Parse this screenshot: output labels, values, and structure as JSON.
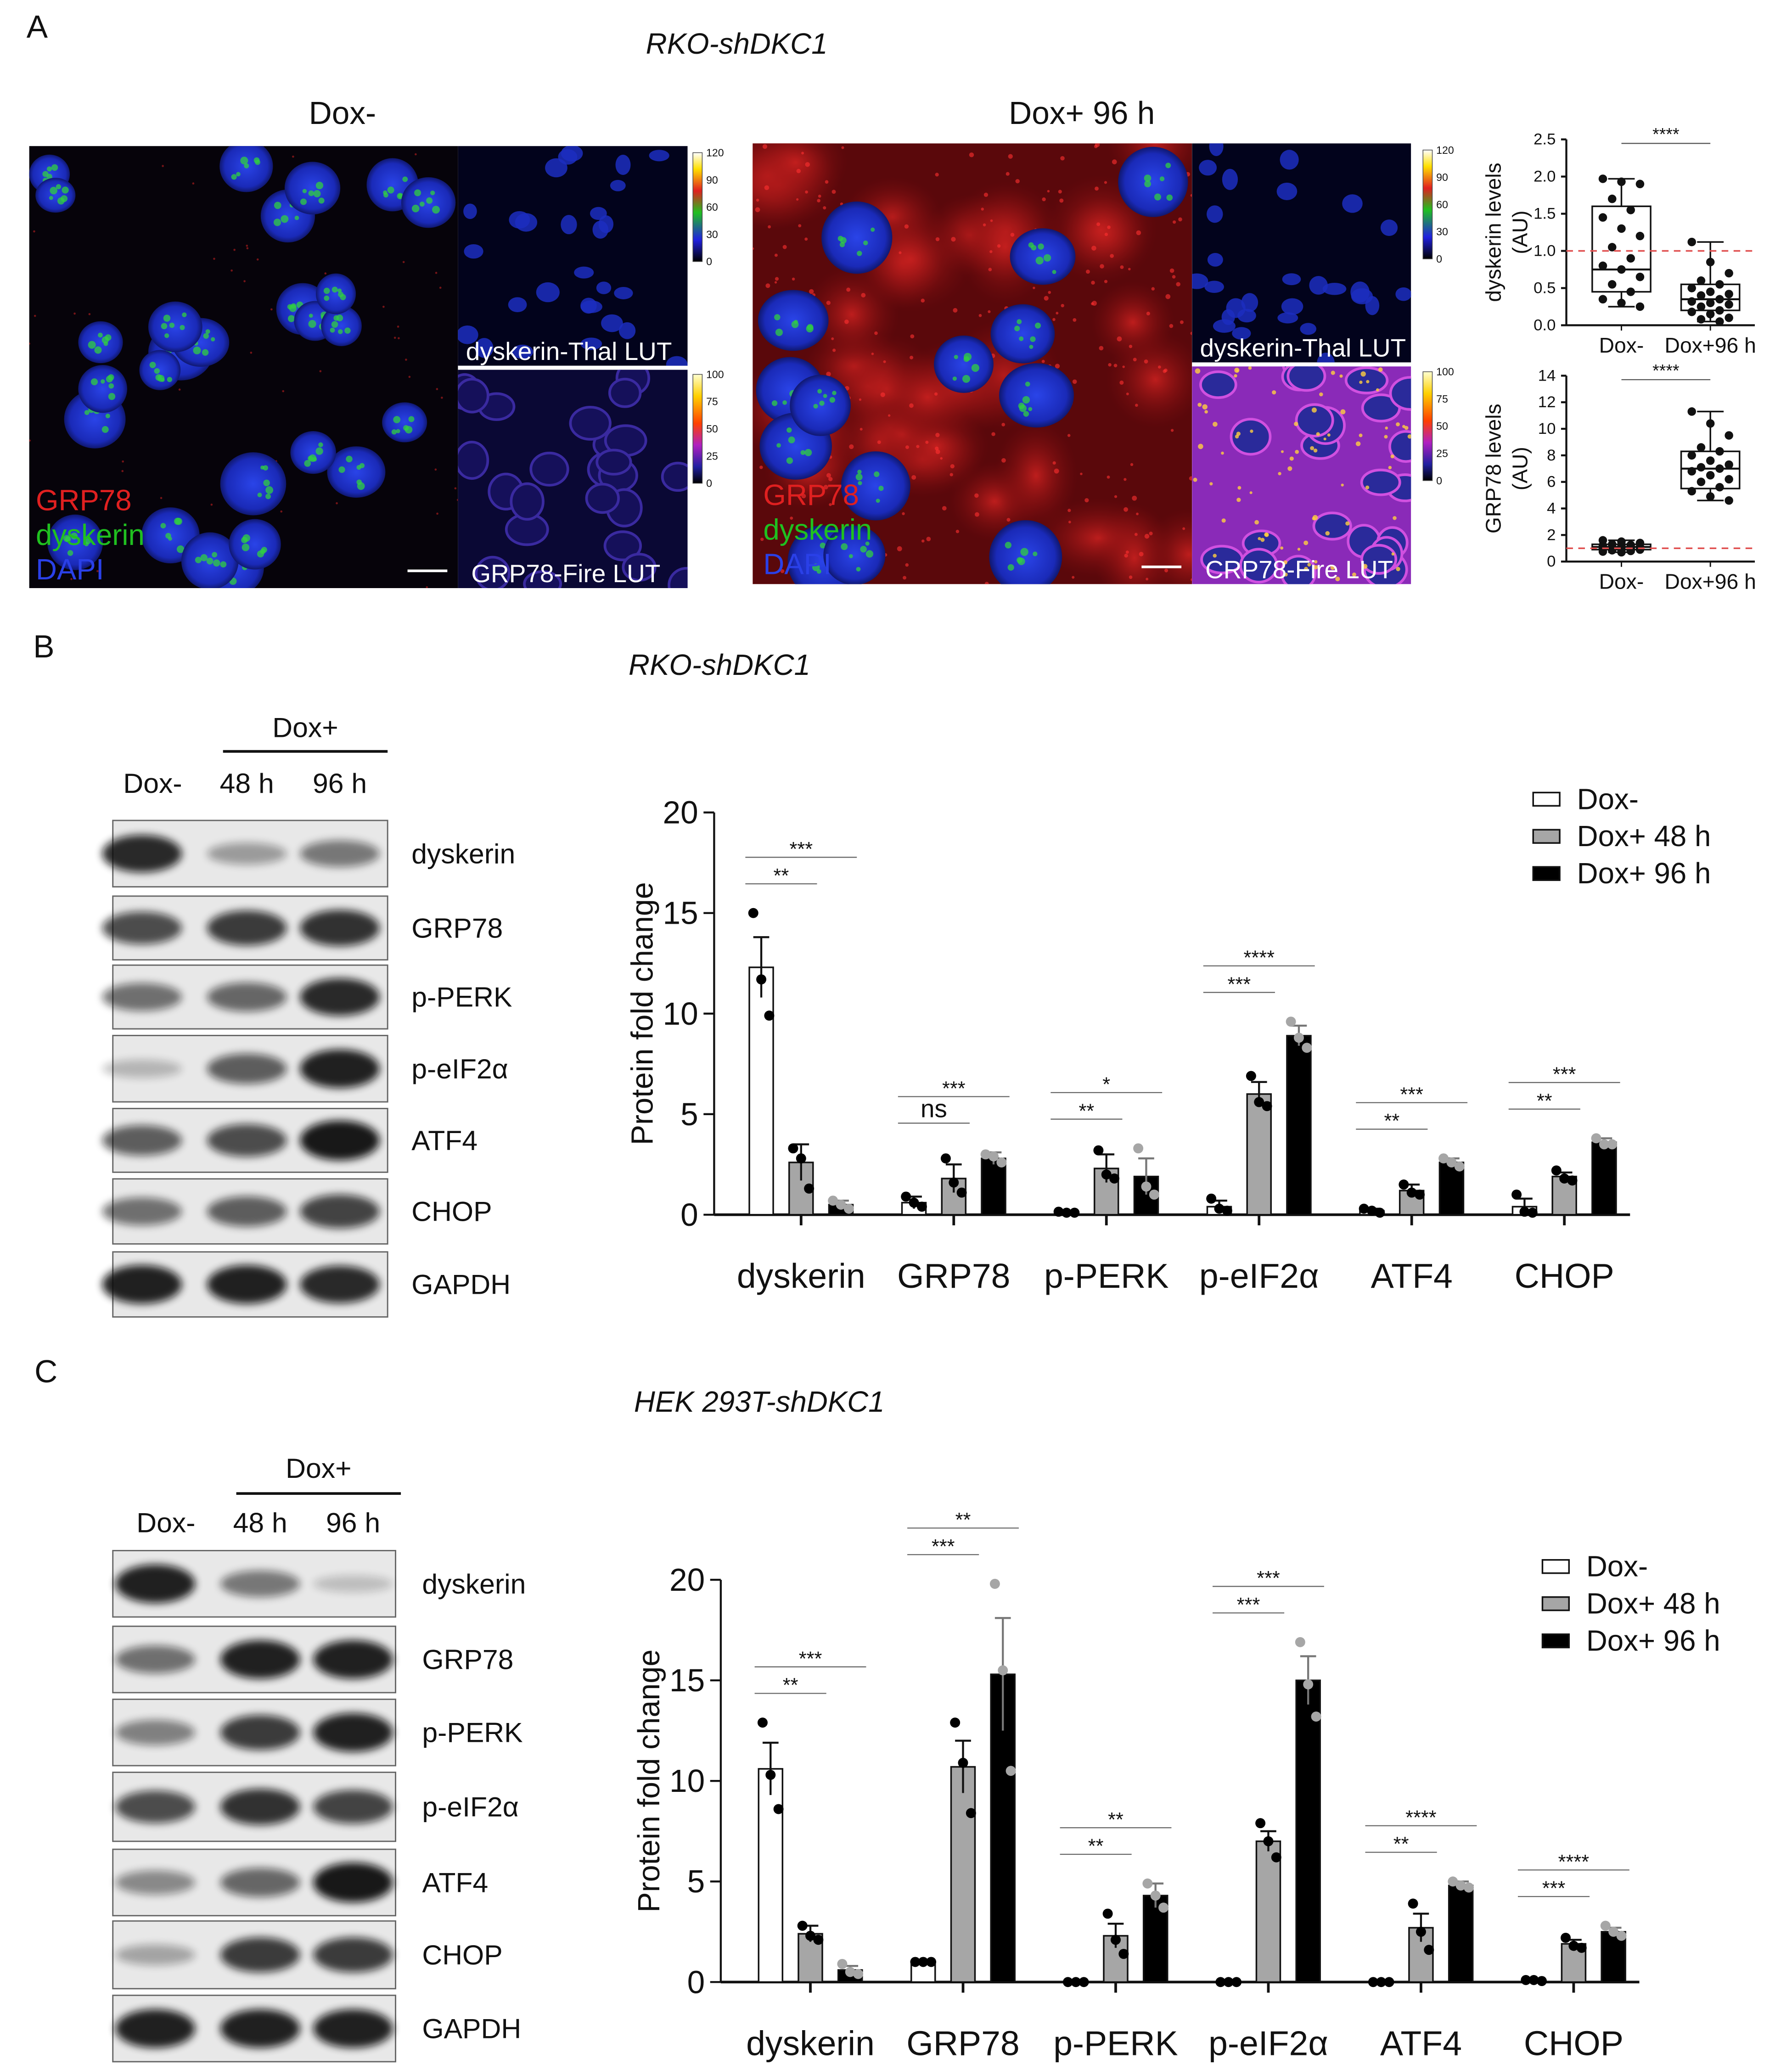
{
  "panels": {
    "A": {
      "label": "A",
      "title": "RKO-shDKC1",
      "images": [
        {
          "title": "Dox-",
          "stains": [
            "GRP78",
            "dyskerin",
            "DAPI"
          ],
          "insets": [
            "dyskerin-Thal LUT",
            "GRP78-Fire LUT"
          ],
          "colorbars": [
            [
              120,
              90,
              60,
              30,
              0
            ],
            [
              100,
              75,
              50,
              25,
              0
            ]
          ]
        },
        {
          "title": "Dox+ 96 h",
          "stains": [
            "GRP78",
            "dyskerin",
            "DAPI"
          ],
          "insets": [
            "dyskerin-Thal LUT",
            "CRP78-Fire LUT"
          ],
          "colorbars": [
            [
              120,
              90,
              60,
              30,
              0
            ],
            [
              100,
              75,
              50,
              25,
              0
            ]
          ]
        }
      ]
    },
    "B": {
      "label": "B",
      "title": "RKO-shDKC1",
      "blot": {
        "group": "Dox+",
        "lanes": [
          "Dox-",
          "48 h",
          "96 h"
        ],
        "proteins": [
          "dyskerin",
          "GRP78",
          "p-PERK",
          "p-eIF2α",
          "ATF4",
          "CHOP",
          "GAPDH"
        ]
      }
    },
    "C": {
      "label": "C",
      "title": "HEK 293T-shDKC1",
      "blot": {
        "group": "Dox+",
        "lanes": [
          "Dox-",
          "48 h",
          "96 h"
        ],
        "proteins": [
          "dyskerin",
          "GRP78",
          "p-PERK",
          "p-eIF2α",
          "ATF4",
          "CHOP",
          "GAPDH"
        ]
      }
    }
  },
  "chart_data": [
    {
      "type": "box",
      "ylabel": [
        "dyskerin levels",
        "(AU)"
      ],
      "categories": [
        "Dox-",
        "Dox+96 h"
      ],
      "ylim": [
        0,
        2.5
      ],
      "yticks": [
        {
          "value": 0,
          "label": "0.0"
        },
        0.5,
        {
          "value": 1,
          "label": "1.0"
        },
        1.5,
        {
          "value": 2,
          "label": "2.0"
        },
        2.5
      ],
      "boxes": [
        {
          "min": 0.25,
          "q1": 0.45,
          "median": 0.75,
          "q3": 1.6,
          "max": 1.97,
          "points": [
            1.97,
            1.93,
            1.9,
            1.7,
            1.55,
            1.45,
            1.3,
            1.2,
            1.05,
            0.9,
            0.8,
            0.75,
            0.65,
            0.55,
            0.45,
            0.35,
            0.3,
            0.25
          ]
        },
        {
          "min": 0.05,
          "q1": 0.2,
          "median": 0.35,
          "q3": 0.55,
          "max": 1.12,
          "points": [
            1.12,
            0.85,
            0.7,
            0.6,
            0.55,
            0.5,
            0.45,
            0.42,
            0.4,
            0.35,
            0.32,
            0.3,
            0.28,
            0.25,
            0.2,
            0.18,
            0.15,
            0.1,
            0.08,
            0.05
          ]
        }
      ],
      "reference_line": 1,
      "reference_color": "#e05050",
      "significance": "****"
    },
    {
      "type": "box",
      "ylabel": [
        "GRP78 levels",
        "(AU)"
      ],
      "categories": [
        "Dox-",
        "Dox+96 h"
      ],
      "ylim": [
        0,
        14
      ],
      "yticks": [
        0,
        2,
        4,
        6,
        8,
        10,
        12,
        14
      ],
      "boxes": [
        {
          "min": 0.7,
          "q1": 0.9,
          "median": 1.1,
          "q3": 1.3,
          "max": 1.6,
          "points": [
            1.6,
            1.5,
            1.4,
            1.3,
            1.25,
            1.2,
            1.15,
            1.1,
            1.05,
            1.0,
            0.95,
            0.9,
            0.9,
            0.85,
            0.8,
            0.75,
            0.7
          ]
        },
        {
          "min": 4.6,
          "q1": 5.5,
          "median": 7,
          "q3": 8.3,
          "max": 11.3,
          "points": [
            11.3,
            10.4,
            9.5,
            8.6,
            8.3,
            8.0,
            7.6,
            7.3,
            7.1,
            7.0,
            6.8,
            6.5,
            6.2,
            6.0,
            5.6,
            5.3,
            4.9,
            4.6
          ]
        }
      ],
      "reference_line": 1,
      "reference_color": "#e05050",
      "significance": "****"
    },
    {
      "type": "bar",
      "ylabel": "Protein fold change",
      "categories": [
        "dyskerin",
        "GRP78",
        "p-PERK",
        "p-eIF2α",
        "ATF4",
        "CHOP"
      ],
      "ylim": [
        0,
        20
      ],
      "yticks": [
        0,
        5,
        10,
        15,
        20
      ],
      "grid": false,
      "legend": "upper right",
      "series": [
        {
          "name": "Dox-",
          "color": "#ffffff",
          "point_color": "#000000",
          "values": [
            12.3,
            0.6,
            0.1,
            0.4,
            0.2,
            0.4
          ],
          "errors": [
            1.5,
            0.3,
            0.05,
            0.3,
            0.1,
            0.4
          ],
          "points": [
            [
              15,
              11.7,
              9.9
            ],
            [
              0.9,
              0.6,
              0.4
            ],
            [
              0.15,
              0.1,
              0.1
            ],
            [
              0.8,
              0.3,
              0.2
            ],
            [
              0.3,
              0.2,
              0.1
            ],
            [
              1.0,
              0.15,
              0.1
            ]
          ]
        },
        {
          "name": "Dox+ 48 h",
          "color": "#a6a6a6",
          "point_color": "#000000",
          "values": [
            2.6,
            1.8,
            2.3,
            6.0,
            1.2,
            1.9
          ],
          "errors": [
            0.9,
            0.7,
            0.7,
            0.6,
            0.3,
            0.2
          ],
          "points": [
            [
              3.3,
              2.8,
              1.3
            ],
            [
              2.8,
              1.6,
              1.1
            ],
            [
              3.2,
              2.0,
              1.8
            ],
            [
              6.9,
              5.6,
              5.4
            ],
            [
              1.5,
              1.1,
              1.0
            ],
            [
              2.2,
              1.8,
              1.7
            ]
          ]
        },
        {
          "name": "Dox+ 96 h",
          "color": "#000000",
          "point_color": "#a6a6a6",
          "values": [
            0.5,
            2.8,
            1.9,
            8.9,
            2.6,
            3.6
          ],
          "errors": [
            0.2,
            0.3,
            0.9,
            0.5,
            0.2,
            0.2
          ],
          "points": [
            [
              0.7,
              0.5,
              0.3
            ],
            [
              3.0,
              2.9,
              2.6
            ],
            [
              3.3,
              1.4,
              1.0
            ],
            [
              9.6,
              8.8,
              8.3
            ],
            [
              2.8,
              2.6,
              2.4
            ],
            [
              3.8,
              3.5,
              3.5
            ]
          ]
        }
      ],
      "significance": [
        [
          "**",
          "***"
        ],
        [
          "ns",
          "***"
        ],
        [
          "**",
          "*"
        ],
        [
          "***",
          "****"
        ],
        [
          "**",
          "***"
        ],
        [
          "**",
          "***"
        ]
      ]
    },
    {
      "type": "bar",
      "ylabel": "Protein fold change",
      "categories": [
        "dyskerin",
        "GRP78",
        "p-PERK",
        "p-eIF2α",
        "ATF4",
        "CHOP"
      ],
      "ylim": [
        0,
        20
      ],
      "yticks": [
        0,
        5,
        10,
        15,
        20
      ],
      "grid": false,
      "legend": "upper right",
      "series": [
        {
          "name": "Dox-",
          "color": "#ffffff",
          "point_color": "#000000",
          "values": [
            10.6,
            1.0,
            0.0,
            0.0,
            0.0,
            0.08
          ],
          "errors": [
            1.3,
            0.0,
            0.0,
            0.0,
            0.0,
            0.02
          ],
          "points": [
            [
              12.9,
              10.3,
              8.6
            ],
            [
              1.0,
              1.0,
              1.0
            ],
            [
              0.0,
              0.0,
              0.0
            ],
            [
              0.0,
              0.0,
              0.0
            ],
            [
              0.0,
              0.0,
              0.0
            ],
            [
              0.1,
              0.1,
              0.05
            ]
          ]
        },
        {
          "name": "Dox+ 48 h",
          "color": "#a6a6a6",
          "point_color": "#000000",
          "values": [
            2.4,
            10.7,
            2.3,
            7.0,
            2.7,
            1.9
          ],
          "errors": [
            0.4,
            1.3,
            0.6,
            0.5,
            0.7,
            0.2
          ],
          "points": [
            [
              2.8,
              2.3,
              2.1
            ],
            [
              12.9,
              10.9,
              8.4
            ],
            [
              3.4,
              2.1,
              1.4
            ],
            [
              7.9,
              7.0,
              6.2
            ],
            [
              3.9,
              2.5,
              1.6
            ],
            [
              2.2,
              1.8,
              1.7
            ]
          ]
        },
        {
          "name": "Dox+ 96 h",
          "color": "#000000",
          "point_color": "#a6a6a6",
          "values": [
            0.6,
            15.3,
            4.3,
            15.0,
            4.8,
            2.5
          ],
          "errors": [
            0.2,
            2.8,
            0.6,
            1.2,
            0.2,
            0.2
          ],
          "points": [
            [
              0.9,
              0.5,
              0.4
            ],
            [
              19.8,
              15.5,
              10.5
            ],
            [
              4.9,
              4.3,
              3.7
            ],
            [
              16.9,
              14.8,
              13.2
            ],
            [
              5.0,
              4.8,
              4.7
            ],
            [
              2.8,
              2.5,
              2.3
            ]
          ]
        }
      ],
      "significance": [
        [
          "**",
          "***"
        ],
        [
          "***",
          "**"
        ],
        [
          "**",
          "**"
        ],
        [
          "***",
          "***"
        ],
        [
          "**",
          "****"
        ],
        [
          "***",
          "****"
        ]
      ]
    }
  ]
}
